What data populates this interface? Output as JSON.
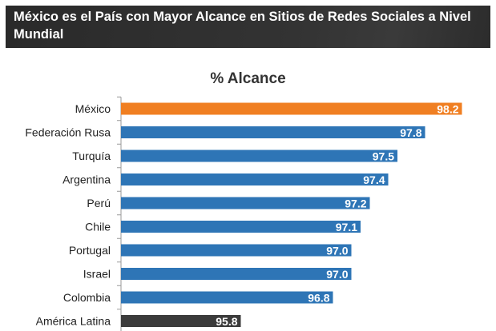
{
  "header": {
    "title": "México es el País con Mayor Alcance en Sitios de Redes Sociales a Nivel Mundial"
  },
  "chart_data": {
    "type": "bar",
    "orientation": "horizontal",
    "title": "% Alcance",
    "categories": [
      "México",
      "Federación Rusa",
      "Turquía",
      "Argentina",
      "Perú",
      "Chile",
      "Portugal",
      "Israel",
      "Colombia",
      "América Latina"
    ],
    "values": [
      98.2,
      97.8,
      97.5,
      97.4,
      97.2,
      97.1,
      97.0,
      97.0,
      96.8,
      95.8
    ],
    "labels": [
      "98.2",
      "97.8",
      "97.5",
      "97.4",
      "97.2",
      "97.1",
      "97.0",
      "97.0",
      "96.8",
      "95.8"
    ],
    "colors": [
      "#F07F22",
      "#2E75B6",
      "#2E75B6",
      "#2E75B6",
      "#2E75B6",
      "#2E75B6",
      "#2E75B6",
      "#2E75B6",
      "#2E75B6",
      "#3B3B3B"
    ],
    "xlim": [
      94.5,
      98.3
    ],
    "grid": false,
    "legend": "none"
  }
}
